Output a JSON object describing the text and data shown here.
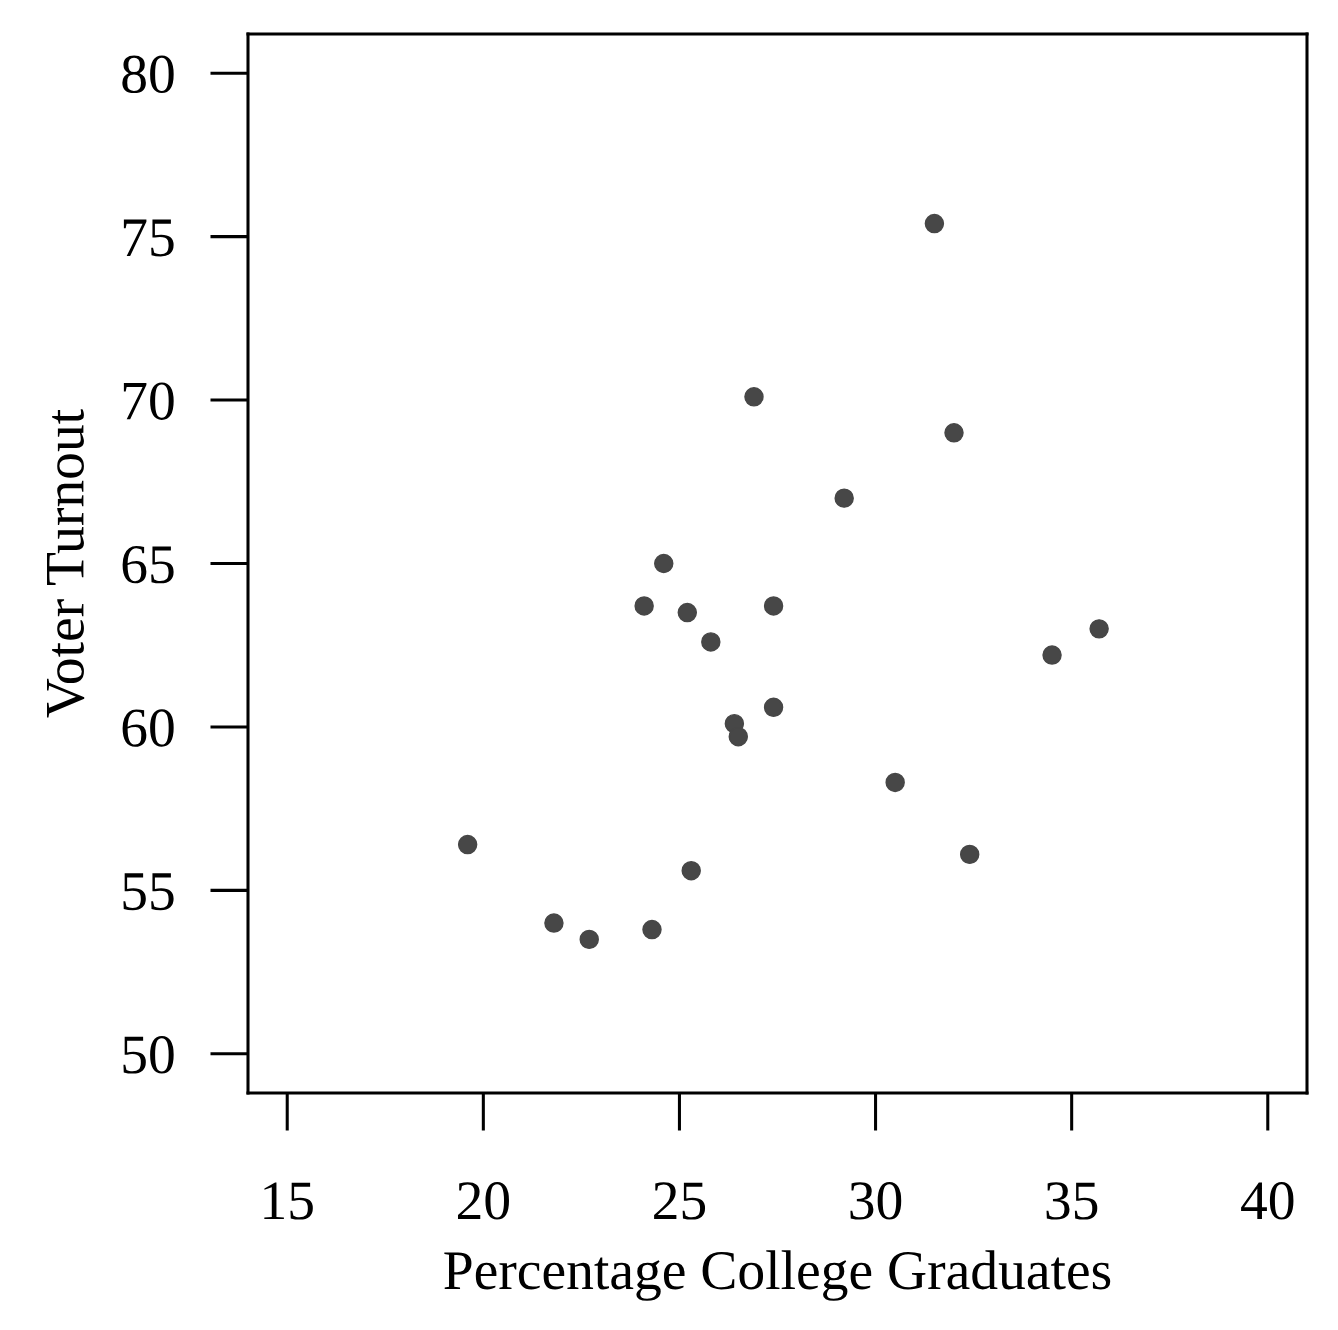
{
  "chart_data": {
    "type": "scatter",
    "xlabel": "Percentage College Graduates",
    "ylabel": "Voter Turnout",
    "x": [
      19.6,
      21.8,
      22.7,
      24.1,
      24.3,
      24.6,
      25.2,
      25.3,
      25.8,
      26.4,
      26.5,
      26.9,
      27.4,
      27.4,
      29.2,
      30.5,
      31.5,
      32.0,
      32.4,
      34.5,
      35.7
    ],
    "values": [
      56.4,
      54.0,
      53.5,
      63.7,
      53.8,
      65.0,
      63.5,
      55.6,
      62.6,
      60.1,
      59.7,
      70.1,
      63.7,
      60.6,
      67.0,
      58.3,
      75.4,
      69.0,
      56.1,
      62.2,
      63.0
    ],
    "color": "#474747",
    "marker": "circle",
    "grid": false,
    "xlim": [
      14,
      41
    ],
    "ylim": [
      48.8,
      81.2
    ],
    "xticks": [
      15,
      20,
      25,
      30,
      35,
      40
    ],
    "yticks": [
      50,
      55,
      60,
      65,
      70,
      75,
      80
    ]
  }
}
